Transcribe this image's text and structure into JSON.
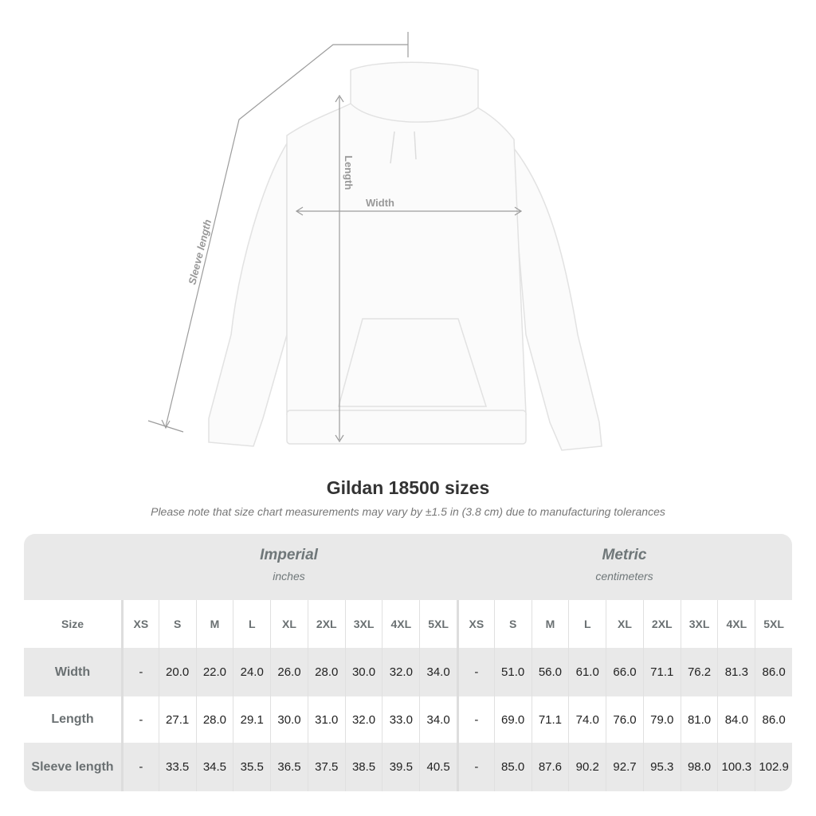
{
  "illustration": {
    "labels": {
      "length": "Length",
      "width": "Width",
      "sleeve": "Sleeve length"
    }
  },
  "title": "Gildan 18500 sizes",
  "subtitle": "Please note that size chart measurements may vary by ±1.5 in (3.8 cm) due to manufacturing tolerances",
  "table": {
    "imperial": {
      "name": "Imperial",
      "unit": "inches"
    },
    "metric": {
      "name": "Metric",
      "unit": "centimeters"
    },
    "size_label": "Size",
    "sizes": [
      "XS",
      "S",
      "M",
      "L",
      "XL",
      "2XL",
      "3XL",
      "4XL",
      "5XL"
    ],
    "rows": [
      {
        "label": "Width",
        "imperial": [
          "-",
          "20.0",
          "22.0",
          "24.0",
          "26.0",
          "28.0",
          "30.0",
          "32.0",
          "34.0"
        ],
        "metric": [
          "-",
          "51.0",
          "56.0",
          "61.0",
          "66.0",
          "71.1",
          "76.2",
          "81.3",
          "86.0"
        ]
      },
      {
        "label": "Length",
        "imperial": [
          "-",
          "27.1",
          "28.0",
          "29.1",
          "30.0",
          "31.0",
          "32.0",
          "33.0",
          "34.0"
        ],
        "metric": [
          "-",
          "69.0",
          "71.1",
          "74.0",
          "76.0",
          "79.0",
          "81.0",
          "84.0",
          "86.0"
        ]
      },
      {
        "label": "Sleeve length",
        "imperial": [
          "-",
          "33.5",
          "34.5",
          "35.5",
          "36.5",
          "37.5",
          "38.5",
          "39.5",
          "40.5"
        ],
        "metric": [
          "-",
          "85.0",
          "87.6",
          "90.2",
          "92.7",
          "95.3",
          "98.0",
          "100.3",
          "102.9"
        ]
      }
    ]
  }
}
